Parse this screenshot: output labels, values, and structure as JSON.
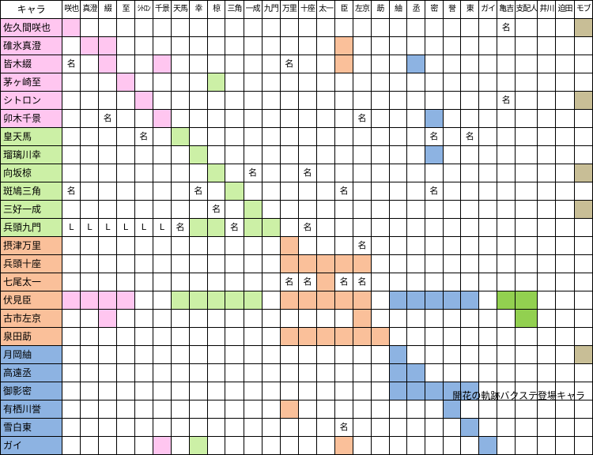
{
  "colors": {
    "pink": "#FFC6F0",
    "green": "#CCF0A6",
    "orange": "#FAC09A",
    "blue": "#8DB3E2",
    "tan": "#C8BE96",
    "olive": "#92D050",
    "white": "#FFFFFF"
  },
  "corner_label": "キャラ",
  "columns": [
    "咲也",
    "真澄",
    "綴",
    "至",
    "ｼﾄﾛﾝ",
    "千景",
    "天馬",
    "幸",
    "椋",
    "三角",
    "一成",
    "九門",
    "万里",
    "十座",
    "太一",
    "臣",
    "左京",
    "莇",
    "紬",
    "丞",
    "密",
    "誉",
    "東",
    "ガイ",
    "亀吉",
    "支配人",
    "井川",
    "迫田",
    "モブ"
  ],
  "caption": "開花の軌跡バクステ登場キャラ",
  "rows": [
    {
      "name": "佐久間咲也",
      "color": "pink",
      "cells": {
        "0": "pink",
        "24": "名",
        "28": "tan"
      }
    },
    {
      "name": "碓氷真澄",
      "color": "pink",
      "cells": {
        "1": "pink",
        "2": "pink",
        "15": "orange"
      }
    },
    {
      "name": "皆木綴",
      "color": "pink",
      "cells": {
        "0": "名",
        "2": "pink",
        "5": "pink",
        "12": "名",
        "15": "orange",
        "19": "blue"
      }
    },
    {
      "name": "茅ヶ崎至",
      "color": "pink",
      "cells": {
        "3": "pink",
        "8": "green"
      }
    },
    {
      "name": "シトロン",
      "color": "pink",
      "cells": {
        "4": "pink",
        "24": "名",
        "28": "tan"
      }
    },
    {
      "name": "卯木千景",
      "color": "pink",
      "cells": {
        "2": "名",
        "5": "pink",
        "16": "名",
        "20": "blue"
      }
    },
    {
      "name": "皇天馬",
      "color": "green",
      "cells": {
        "4": "名",
        "6": "green",
        "20": "名",
        "22": "名"
      }
    },
    {
      "name": "瑠璃川幸",
      "color": "green",
      "cells": {
        "7": "green",
        "20": "blue"
      }
    },
    {
      "name": "向坂椋",
      "color": "green",
      "cells": {
        "8": "green",
        "10": "名",
        "13": "名",
        "28": "tan"
      }
    },
    {
      "name": "斑鳩三角",
      "color": "green",
      "cells": {
        "0": "名",
        "7": "名",
        "9": "green",
        "15": "名",
        "20": "名"
      }
    },
    {
      "name": "三好一成",
      "color": "green",
      "cells": {
        "8": "名",
        "10": "green",
        "28": "tan"
      }
    },
    {
      "name": "兵頭九門",
      "color": "green",
      "cells": {
        "0": "L",
        "1": "L",
        "2": "L",
        "3": "L",
        "4": "L",
        "5": "L",
        "6": "名",
        "7": "green",
        "8": "green",
        "9": "名",
        "10": "green",
        "11": "green",
        "13": "名"
      }
    },
    {
      "name": "摂津万里",
      "color": "orange",
      "cells": {
        "12": "orange",
        "16": "名"
      }
    },
    {
      "name": "兵頭十座",
      "color": "orange",
      "cells": {
        "12": "orange",
        "13": "orange",
        "14": "orange",
        "15": "orange",
        "16": "orange"
      }
    },
    {
      "name": "七尾太一",
      "color": "orange",
      "cells": {
        "12": "名",
        "13": "名",
        "14": "orange",
        "15": "名",
        "16": "名"
      }
    },
    {
      "name": "伏見臣",
      "color": "orange",
      "cells": {
        "0": "pink",
        "1": "pink",
        "2": "pink",
        "3": "pink",
        "6": "green",
        "7": "green",
        "8": "green",
        "9": "green",
        "10": "green",
        "12": "orange",
        "13": "orange",
        "14": "orange",
        "15": "orange",
        "16": "orange",
        "18": "blue",
        "19": "blue",
        "20": "blue",
        "21": "blue",
        "22": "blue",
        "24": "olive",
        "25": "olive"
      }
    },
    {
      "name": "古市左京",
      "color": "orange",
      "cells": {
        "2": "pink",
        "16": "orange",
        "25": "olive"
      }
    },
    {
      "name": "泉田莇",
      "color": "orange",
      "cells": {
        "12": "orange",
        "13": "orange",
        "14": "orange",
        "15": "orange",
        "16": "orange",
        "17": "orange"
      }
    },
    {
      "name": "月岡紬",
      "color": "blue",
      "cells": {
        "18": "blue",
        "28": "tan"
      }
    },
    {
      "name": "高遠丞",
      "color": "blue",
      "cells": {
        "18": "blue",
        "19": "blue"
      }
    },
    {
      "name": "御影密",
      "color": "blue",
      "cells": {
        "18": "blue",
        "19": "blue",
        "20": "blue",
        "21": "blue",
        "22": "blue"
      }
    },
    {
      "name": "有栖川誉",
      "color": "blue",
      "cells": {
        "12": "orange",
        "21": "blue"
      }
    },
    {
      "name": "雪白東",
      "color": "blue",
      "cells": {
        "15": "名",
        "22": "blue"
      }
    },
    {
      "name": "ガイ",
      "color": "blue",
      "cells": {
        "5": "pink",
        "7": "green",
        "15": "orange",
        "23": "blue"
      }
    }
  ]
}
